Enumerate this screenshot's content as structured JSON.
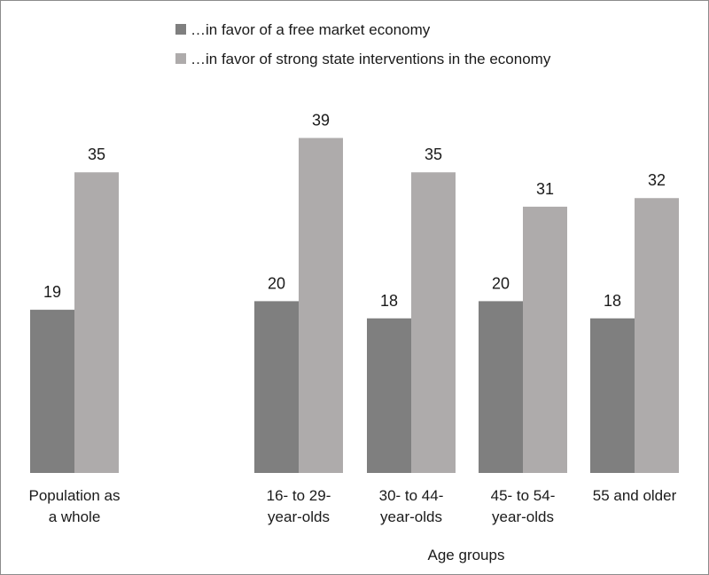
{
  "chart_data": {
    "type": "bar",
    "categories": [
      [
        "Population as",
        "a whole"
      ],
      [
        "16- to 29-",
        "year-olds"
      ],
      [
        "30- to 44-",
        "year-olds"
      ],
      [
        "45- to 54-",
        "year-olds"
      ],
      [
        "55 and older"
      ]
    ],
    "series": [
      {
        "name": "…in favor of a free market economy",
        "values": [
          19,
          20,
          18,
          20,
          18
        ],
        "color": "#7f7f7f"
      },
      {
        "name": "…in favor of strong state interventions in the economy",
        "values": [
          35,
          39,
          35,
          31,
          32
        ],
        "color": "#aeabab"
      }
    ],
    "xlabel": "Age groups",
    "ylabel": "",
    "ylim": [
      0,
      40
    ],
    "grid": false,
    "legend": "top-center",
    "value_labels": true
  }
}
